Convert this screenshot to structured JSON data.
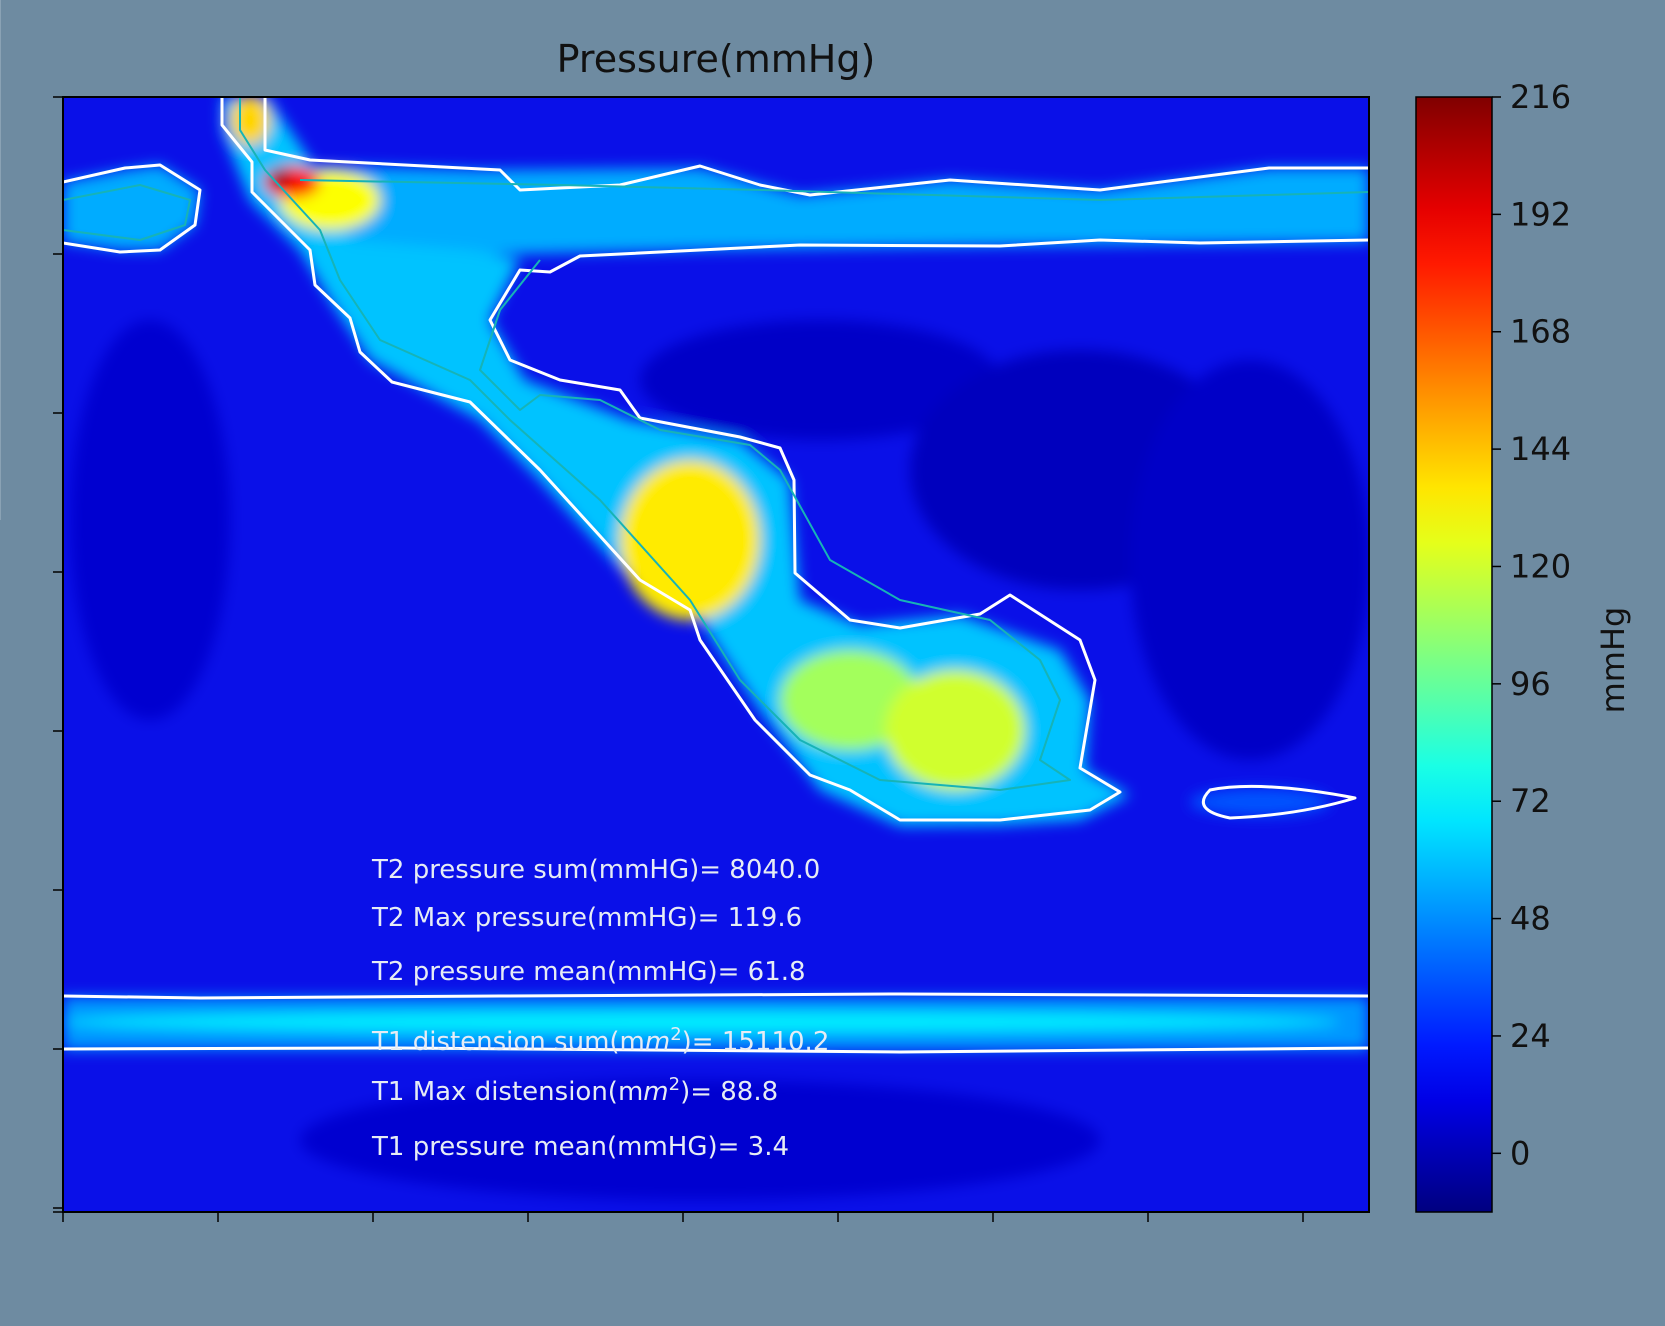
{
  "colors": {
    "background": "#6e8ba1",
    "text_dark": "#111111",
    "text_light": "#e6ecf5",
    "contour_white": "#ffffff",
    "contour_teal": "#17b3b6"
  },
  "chart_data": {
    "type": "heatmap",
    "title": "Pressure(mmHg)",
    "colormap": "jet",
    "colorbar": {
      "label": "mmHg",
      "range": [
        -12,
        216
      ],
      "ticks": [
        0,
        24,
        48,
        72,
        96,
        120,
        144,
        168,
        192,
        216
      ],
      "tick_labels": [
        "0",
        "24",
        "48",
        "72",
        "96",
        "120",
        "144",
        "168",
        "192",
        "216"
      ]
    },
    "x_ticks_count": 9,
    "y_ticks_count": 8,
    "x_tick_labels": [],
    "y_tick_labels": [],
    "contour_levels": [
      30,
      40
    ],
    "field_features": {
      "background_level": 12,
      "top_band_level": 55,
      "bottom_band_level": 50,
      "diagonal_peak_level": 135,
      "top_hotspot_max": 216
    },
    "annotations": [
      {
        "name": "t2-sum",
        "text": "T2 pressure sum(mmHG)= 8040.0"
      },
      {
        "name": "t2-max",
        "text": "T2 Max pressure(mmHG)= 119.6"
      },
      {
        "name": "t2-mean",
        "text": "T2 pressure mean(mmHG)= 61.8"
      },
      {
        "name": "t1-dist-sum",
        "prefix": "T1 distension sum(m",
        "unit_italic": "m",
        "sup": "2",
        "suffix": ")= 15110.2"
      },
      {
        "name": "t1-dist-max",
        "prefix": "T1 Max distension(m",
        "unit_italic": "m",
        "sup": "2",
        "suffix": ")= 88.8"
      },
      {
        "name": "t1-mean",
        "text": "T1 pressure mean(mmHG)= 3.4"
      }
    ]
  }
}
